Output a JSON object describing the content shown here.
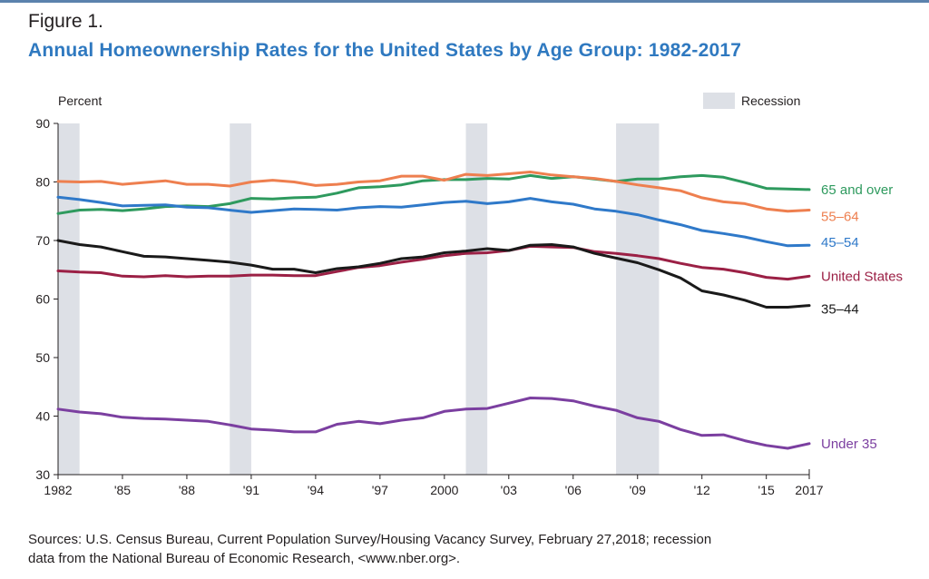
{
  "figure_label": "Figure 1.",
  "title": "Annual Homeownership Rates for the United States by Age Group: 1982-2017",
  "source": {
    "line1": "Sources: U.S. Census Bureau, Current Population Survey/Housing Vacancy Survey, February 27,2018; recession",
    "line2": "data from the National Bureau of Economic Research, <www.nber.org>."
  },
  "chart_data": {
    "type": "line",
    "ylabel": "Percent",
    "ylim": [
      30,
      90
    ],
    "y_ticks": [
      30,
      40,
      50,
      60,
      70,
      80,
      90
    ],
    "xlim": [
      1982,
      2017
    ],
    "x_ticks": [
      {
        "value": 1982,
        "label": "1982"
      },
      {
        "value": 1985,
        "label": "'85"
      },
      {
        "value": 1988,
        "label": "'88"
      },
      {
        "value": 1991,
        "label": "'91"
      },
      {
        "value": 1994,
        "label": "'94"
      },
      {
        "value": 1997,
        "label": "'97"
      },
      {
        "value": 2000,
        "label": "2000"
      },
      {
        "value": 2003,
        "label": "'03"
      },
      {
        "value": 2006,
        "label": "'06"
      },
      {
        "value": 2009,
        "label": "'09"
      },
      {
        "value": 2012,
        "label": "'12"
      },
      {
        "value": 2015,
        "label": "'15"
      },
      {
        "value": 2017,
        "label": "2017"
      }
    ],
    "grid": false,
    "legend": {
      "label": "Recession",
      "position": "top-right",
      "color": "#dde0e6"
    },
    "recessions": [
      [
        1982,
        1983
      ],
      [
        1990,
        1991
      ],
      [
        2001,
        2002
      ],
      [
        2008,
        2010
      ]
    ],
    "x": [
      1982,
      1983,
      1984,
      1985,
      1986,
      1987,
      1988,
      1989,
      1990,
      1991,
      1992,
      1993,
      1994,
      1995,
      1996,
      1997,
      1998,
      1999,
      2000,
      2001,
      2002,
      2003,
      2004,
      2005,
      2006,
      2007,
      2008,
      2009,
      2010,
      2011,
      2012,
      2013,
      2014,
      2015,
      2016,
      2017
    ],
    "series": [
      {
        "name": "65 and over",
        "color": "#2e9a5e",
        "values": [
          74.6,
          75.2,
          75.3,
          75.1,
          75.4,
          75.8,
          75.9,
          75.8,
          76.3,
          77.2,
          77.1,
          77.3,
          77.4,
          78.1,
          79.0,
          79.2,
          79.5,
          80.2,
          80.4,
          80.4,
          80.6,
          80.5,
          81.1,
          80.6,
          80.9,
          80.5,
          80.1,
          80.5,
          80.5,
          80.9,
          81.1,
          80.8,
          79.9,
          78.9,
          78.8,
          78.7
        ]
      },
      {
        "name": "55–64",
        "color": "#ee7f4f",
        "values": [
          80.1,
          80.0,
          80.1,
          79.6,
          79.9,
          80.2,
          79.6,
          79.6,
          79.3,
          80.0,
          80.3,
          80.0,
          79.4,
          79.6,
          80.0,
          80.2,
          81.0,
          81.0,
          80.3,
          81.3,
          81.1,
          81.4,
          81.7,
          81.2,
          80.9,
          80.6,
          80.1,
          79.5,
          79.0,
          78.5,
          77.3,
          76.6,
          76.3,
          75.4,
          75.0,
          75.2
        ]
      },
      {
        "name": "45–54",
        "color": "#2f79c9",
        "values": [
          77.4,
          77.0,
          76.5,
          75.9,
          76.0,
          76.1,
          75.7,
          75.6,
          75.2,
          74.8,
          75.1,
          75.4,
          75.3,
          75.2,
          75.6,
          75.8,
          75.7,
          76.1,
          76.5,
          76.7,
          76.3,
          76.6,
          77.2,
          76.6,
          76.2,
          75.4,
          75.0,
          74.4,
          73.5,
          72.7,
          71.7,
          71.2,
          70.6,
          69.8,
          69.1,
          69.2
        ]
      },
      {
        "name": "United States",
        "color": "#9b2045",
        "values": [
          64.8,
          64.6,
          64.5,
          63.9,
          63.8,
          64.0,
          63.8,
          63.9,
          63.9,
          64.1,
          64.1,
          64.0,
          64.0,
          64.7,
          65.4,
          65.7,
          66.3,
          66.8,
          67.4,
          67.8,
          67.9,
          68.3,
          69.0,
          68.9,
          68.8,
          68.1,
          67.8,
          67.4,
          66.9,
          66.1,
          65.4,
          65.1,
          64.5,
          63.7,
          63.4,
          63.9
        ]
      },
      {
        "name": "35–44",
        "color": "#1a1a1a",
        "values": [
          70.0,
          69.3,
          68.9,
          68.1,
          67.3,
          67.2,
          66.9,
          66.6,
          66.3,
          65.8,
          65.1,
          65.1,
          64.5,
          65.2,
          65.5,
          66.1,
          66.9,
          67.2,
          67.9,
          68.2,
          68.6,
          68.3,
          69.2,
          69.3,
          68.9,
          67.8,
          67.0,
          66.2,
          65.0,
          63.6,
          61.4,
          60.7,
          59.8,
          58.6,
          58.6,
          58.9
        ]
      },
      {
        "name": "Under 35",
        "color": "#7b3fa0",
        "values": [
          41.2,
          40.7,
          40.4,
          39.8,
          39.6,
          39.5,
          39.3,
          39.1,
          38.5,
          37.8,
          37.6,
          37.3,
          37.3,
          38.6,
          39.1,
          38.7,
          39.3,
          39.7,
          40.8,
          41.2,
          41.3,
          42.2,
          43.1,
          43.0,
          42.6,
          41.7,
          41.0,
          39.7,
          39.1,
          37.7,
          36.7,
          36.8,
          35.8,
          35.0,
          34.5,
          35.3
        ]
      }
    ]
  }
}
